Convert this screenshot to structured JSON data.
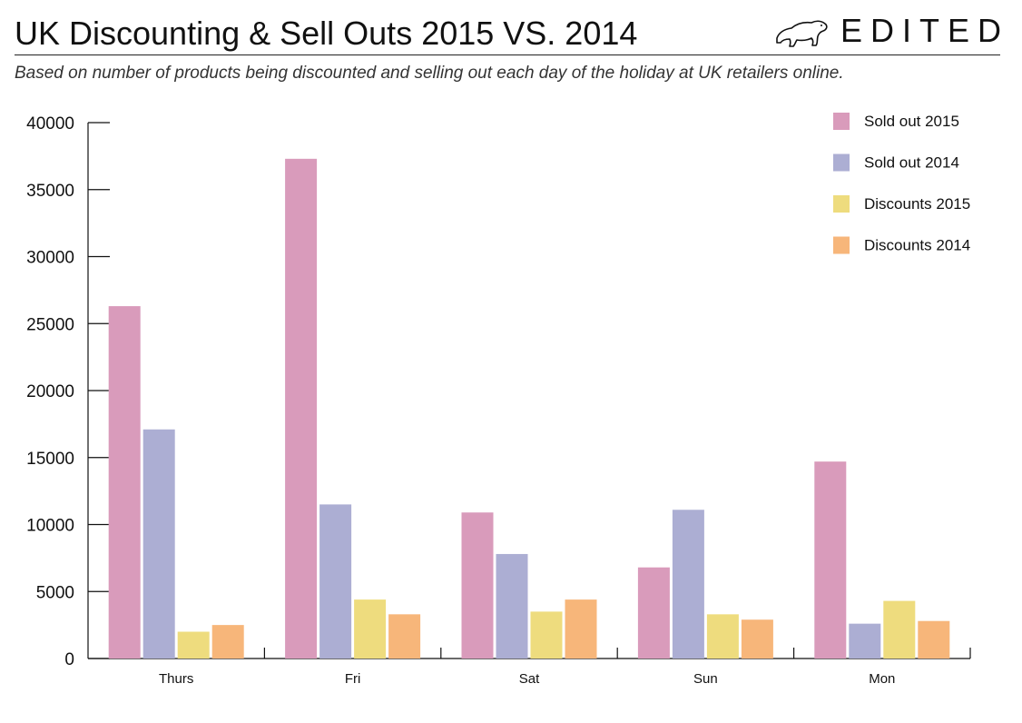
{
  "header": {
    "title": "UK Discounting & Sell Outs 2015 VS. 2014",
    "subtitle": "Based on number of products being discounted and selling out each day of the holiday at UK retailers online.",
    "brand": "EDITED",
    "brand_icon": "polar-bear-icon"
  },
  "chart_data": {
    "type": "bar",
    "title": "UK Discounting & Sell Outs 2015 VS. 2014",
    "subtitle": "Based on number of products being discounted and selling out each day of the holiday at UK retailers online.",
    "xlabel": "",
    "ylabel": "",
    "categories": [
      "Thurs",
      "Fri",
      "Sat",
      "Sun",
      "Mon"
    ],
    "series": [
      {
        "name": "Sold out 2015",
        "color": "#d99bbb",
        "values": [
          26300,
          37300,
          10900,
          6800,
          14700
        ]
      },
      {
        "name": "Sold out 2014",
        "color": "#acaed3",
        "values": [
          17100,
          11500,
          7800,
          11100,
          2600
        ]
      },
      {
        "name": "Discounts 2015",
        "color": "#eedc7e",
        "values": [
          2000,
          4400,
          3500,
          3300,
          4300
        ]
      },
      {
        "name": "Discounts 2014",
        "color": "#f7b67a",
        "values": [
          2500,
          3300,
          4400,
          2900,
          2800
        ]
      }
    ],
    "ylim": [
      0,
      40000
    ],
    "yticks": [
      0,
      5000,
      10000,
      15000,
      20000,
      25000,
      30000,
      35000,
      40000
    ],
    "grid": false,
    "legend_position": "top-right"
  }
}
